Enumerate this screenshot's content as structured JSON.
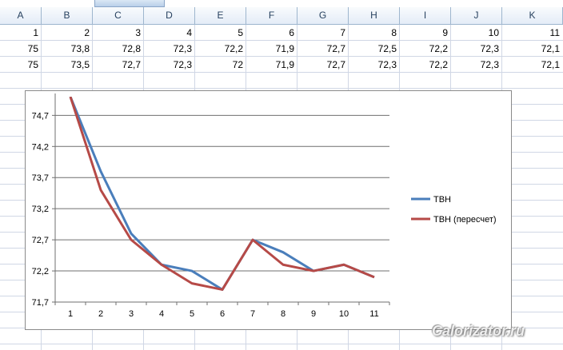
{
  "columns": [
    "A",
    "B",
    "C",
    "D",
    "E",
    "F",
    "G",
    "H",
    "I",
    "J",
    "K"
  ],
  "rows": [
    [
      "1",
      "2",
      "3",
      "4",
      "5",
      "6",
      "7",
      "8",
      "9",
      "10",
      "11"
    ],
    [
      "75",
      "73,8",
      "72,8",
      "72,3",
      "72,2",
      "71,9",
      "72,7",
      "72,5",
      "72,2",
      "72,3",
      "72,1"
    ],
    [
      "75",
      "73,5",
      "72,7",
      "72,3",
      "72",
      "71,9",
      "72,7",
      "72,3",
      "72,2",
      "72,3",
      "72,1"
    ]
  ],
  "chart_data": {
    "type": "line",
    "categories": [
      "1",
      "2",
      "3",
      "4",
      "5",
      "6",
      "7",
      "8",
      "9",
      "10",
      "11"
    ],
    "series": [
      {
        "name": "ТВН",
        "values": [
          75,
          73.8,
          72.8,
          72.3,
          72.2,
          71.9,
          72.7,
          72.5,
          72.2,
          72.3,
          72.1
        ],
        "color": "#4a7ebb"
      },
      {
        "name": "ТВН (пересчет)",
        "values": [
          75,
          73.5,
          72.7,
          72.3,
          72.0,
          71.9,
          72.7,
          72.3,
          72.2,
          72.3,
          72.1
        ],
        "color": "#b64a47"
      }
    ],
    "ylim": [
      71.7,
      75.0
    ],
    "yticks": [
      71.7,
      72.2,
      72.7,
      73.2,
      73.7,
      74.2,
      74.7
    ],
    "ytick_labels": [
      "71,7",
      "72,2",
      "72,7",
      "73,2",
      "73,7",
      "74,2",
      "74,7"
    ],
    "grid": true,
    "legend": "right"
  },
  "watermark": "Calorizator.ru"
}
